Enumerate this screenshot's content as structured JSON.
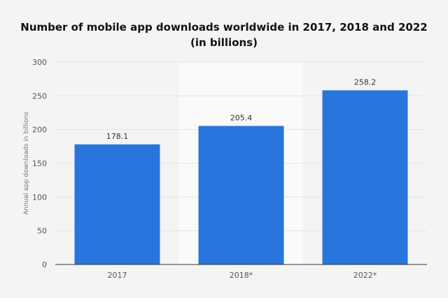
{
  "chart_data": {
    "type": "bar",
    "title": "Number of mobile app downloads worldwide in 2017, 2018 and 2022",
    "subtitle": "(in billions)",
    "ylabel": "Annual app downloads in billions",
    "xlabel": "",
    "categories": [
      "2017",
      "2018*",
      "2022*"
    ],
    "values": [
      178.1,
      205.4,
      258.2
    ],
    "data_labels": [
      "178.1",
      "205.4",
      "258.2"
    ],
    "yticks": [
      0,
      50,
      100,
      150,
      200,
      250,
      300
    ],
    "ylim": [
      0,
      300
    ],
    "grid": true,
    "highlighted_category": "2018*",
    "colors": {
      "bar": "#2876dd",
      "highlight_band": "#fafafa",
      "grid": "#e3e3e3",
      "axis": "#333333",
      "background": "#f4f4f4"
    }
  }
}
